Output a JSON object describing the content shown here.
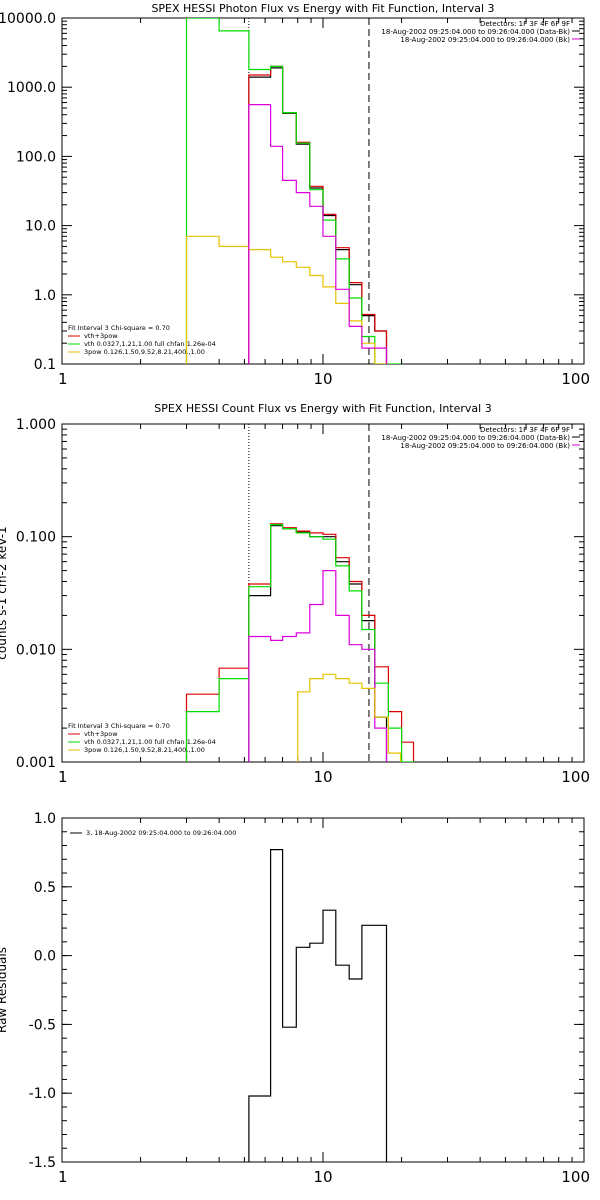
{
  "chart_data": [
    {
      "type": "line",
      "title": "SPEX HESSI Photon Flux vs Energy with Fit Function, Interval 3",
      "xscale": "log",
      "yscale": "log",
      "xlim": [
        1,
        100
      ],
      "ylim": [
        0.1,
        10000
      ],
      "xticks": [
        "1",
        "10",
        "100"
      ],
      "yticks": [
        "0.1",
        "1.0",
        "10.0",
        "100.0",
        "1000.0",
        "10000.0"
      ],
      "vlines": [
        {
          "x": 5.2,
          "style": "dotted"
        },
        {
          "x": 15,
          "style": "dashed"
        }
      ],
      "header": [
        "Detectors: 1F 3F 4F 6F 9F",
        "18-Aug-2002 09:25:04.000 to 09:26:04.000 (Data-Bk)",
        "18-Aug-2002 09:25:04.000 to 09:26:04.000 (Bk)"
      ],
      "fit_lines": [
        "Fit Interval  3   Chi-square = 0.70",
        "vth+3pow",
        "vth 0.0327,1.21,1.00  full chfan 1.26e-04",
        "3pow 0.126,1.50,9.52,8.21,400.,1.00"
      ],
      "series": [
        {
          "color": "#000000",
          "x": [
            5.2,
            6.3,
            7.0,
            7.9,
            8.9,
            10.0,
            11.2,
            12.6,
            14.1,
            15.8
          ],
          "y": [
            1400,
            1900,
            420,
            150,
            35,
            14,
            4.5,
            1.4,
            0.5,
            0.3
          ]
        },
        {
          "color": "#dd0000",
          "x": [
            5.2,
            6.3,
            7.0,
            7.9,
            8.9,
            10.0,
            11.2,
            12.6,
            14.1,
            15.8
          ],
          "y": [
            1500,
            2000,
            430,
            160,
            37,
            14.5,
            4.8,
            1.5,
            0.52,
            0.3
          ]
        },
        {
          "name": "vth",
          "color": "#00dd00",
          "x": [
            3,
            4,
            5.2,
            6.3,
            7.0,
            7.9,
            8.9,
            10.0,
            11.2,
            12.6,
            14.1,
            15.8,
            17.8
          ],
          "y": [
            10000,
            6500,
            1800,
            2000,
            430,
            155,
            33,
            12,
            3.3,
            0.9,
            0.25,
            0.1,
            0.1
          ]
        },
        {
          "name": "3pow",
          "color": "#e6c200",
          "x": [
            3,
            4,
            5.2,
            6.3,
            7.0,
            7.9,
            8.9,
            10.0,
            11.2,
            12.6,
            14.1,
            15.8
          ],
          "y": [
            7,
            5,
            4.5,
            3.5,
            3,
            2.5,
            1.9,
            1.3,
            0.75,
            0.42,
            0.2,
            0.1
          ]
        },
        {
          "color": "#dd00dd",
          "x": [
            5.2,
            6.3,
            7.0,
            7.9,
            8.9,
            10.0,
            11.2,
            12.6,
            14.1,
            15.8
          ],
          "y": [
            560,
            140,
            45,
            30,
            19,
            7,
            1.2,
            0.35,
            0.17,
            0.17
          ]
        }
      ]
    },
    {
      "type": "line",
      "title": "SPEX HESSI Count Flux vs Energy with Fit Function, Interval 3",
      "ylabel": "counts s-1 cm-2 keV-1",
      "xscale": "log",
      "yscale": "log",
      "xlim": [
        1,
        100
      ],
      "ylim": [
        0.001,
        1
      ],
      "xticks": [
        "1",
        "10",
        "100"
      ],
      "yticks": [
        "0.001",
        "0.010",
        "0.100",
        "1.000"
      ],
      "vlines": [
        {
          "x": 5.2,
          "style": "dotted"
        },
        {
          "x": 15,
          "style": "dashed"
        }
      ],
      "header": [
        "Detectors: 1F 3F 4F 6F 9F",
        "18-Aug-2002 09:25:04.000 to 09:26:04.000 (Data-Bk)",
        "18-Aug-2002 09:25:04.000 to 09:26:04.000 (Bk)"
      ],
      "fit_lines": [
        "Fit Interval  3   Chi-square = 0.70",
        "vth+3pow",
        "vth 0.0327,1.21,1.00  full chfan 1.26e-04",
        "3pow 0.126,1.50,9.52,8.21,400.,1.00"
      ],
      "series": [
        {
          "color": "#000000",
          "x": [
            5.2,
            6.3,
            7.0,
            7.9,
            8.9,
            10.0,
            11.2,
            12.6,
            14.1,
            15.8
          ],
          "y": [
            0.03,
            0.125,
            0.118,
            0.11,
            0.1,
            0.1,
            0.06,
            0.038,
            0.018,
            0.0025
          ]
        },
        {
          "color": "#dd0000",
          "x": [
            3,
            4,
            5.2,
            6.3,
            7.0,
            7.9,
            8.9,
            10.0,
            11.2,
            12.6,
            14.1,
            15.8,
            17.8,
            20
          ],
          "y": [
            0.004,
            0.0068,
            0.038,
            0.13,
            0.12,
            0.112,
            0.108,
            0.105,
            0.065,
            0.04,
            0.02,
            0.007,
            0.0028,
            0.0015
          ]
        },
        {
          "name": "vth",
          "color": "#00dd00",
          "x": [
            3,
            4,
            5.2,
            6.3,
            7.0,
            7.9,
            8.9,
            10.0,
            11.2,
            12.6,
            14.1,
            15.8,
            17.8,
            20
          ],
          "y": [
            0.0028,
            0.0055,
            0.036,
            0.128,
            0.118,
            0.108,
            0.1,
            0.095,
            0.055,
            0.033,
            0.015,
            0.005,
            0.002,
            0.001
          ]
        },
        {
          "color": "#dd00dd",
          "x": [
            5.2,
            6.3,
            7.0,
            7.9,
            8.9,
            10.0,
            11.2,
            12.6,
            14.1,
            15.8
          ],
          "y": [
            0.013,
            0.012,
            0.013,
            0.014,
            0.025,
            0.05,
            0.02,
            0.011,
            0.01,
            0.002
          ]
        },
        {
          "name": "3pow",
          "color": "#e6c200",
          "x": [
            8.0,
            8.9,
            10.0,
            11.2,
            12.6,
            14.1,
            15.8,
            17.8
          ],
          "y": [
            0.0042,
            0.0055,
            0.006,
            0.0055,
            0.005,
            0.0045,
            0.0025,
            0.0012
          ]
        }
      ]
    },
    {
      "type": "line",
      "ylabel": "Raw Residuals",
      "xscale": "log",
      "xlim": [
        1,
        100
      ],
      "ylim": [
        -1.5,
        1.0
      ],
      "xticks": [
        "1",
        "10",
        "100"
      ],
      "yticks": [
        "-1.5",
        "-1.0",
        "-0.5",
        "0.0",
        "0.5",
        "1.0"
      ],
      "legend": "3, 18-Aug-2002 09:25:04.000 to 09:26:04.000",
      "series": [
        {
          "color": "#000000",
          "x": [
            5.2,
            6.3,
            7.0,
            7.9,
            8.9,
            10.0,
            11.2,
            12.6,
            14.1,
            15.8
          ],
          "y": [
            -1.02,
            0.77,
            -0.52,
            0.06,
            0.09,
            0.33,
            -0.07,
            -0.17,
            0.22,
            0.22
          ]
        }
      ]
    }
  ]
}
